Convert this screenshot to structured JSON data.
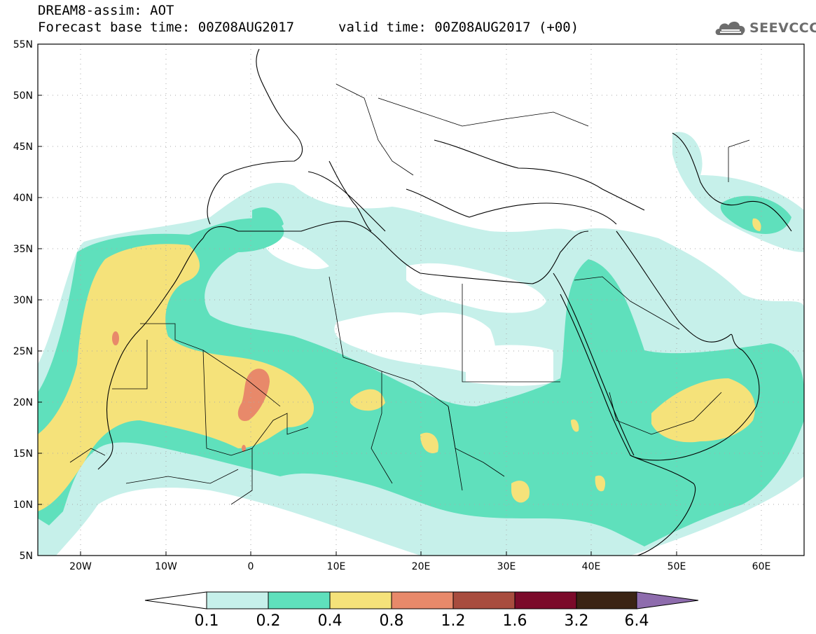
{
  "header": {
    "title": "DREAM8-assim: AOT",
    "base_time": "Forecast base time: 00Z08AUG2017",
    "valid_time": "valid time: 00Z08AUG2017 (+00)"
  },
  "logo": {
    "text": "SEEVCCC",
    "icon": "cloud-icon",
    "color": "#6d6d6d"
  },
  "map": {
    "lon_range": [
      -25,
      65
    ],
    "lat_range": [
      5,
      55
    ],
    "lat_labels": [
      "55N",
      "50N",
      "45N",
      "40N",
      "35N",
      "30N",
      "25N",
      "20N",
      "15N",
      "10N",
      "5N"
    ],
    "lon_labels": [
      "20W",
      "10W",
      "0",
      "10E",
      "20E",
      "30E",
      "40E",
      "50E",
      "60E"
    ]
  },
  "colorbar": {
    "labels": [
      "0.1",
      "0.2",
      "0.4",
      "0.8",
      "1.2",
      "1.6",
      "3.2",
      "6.4"
    ],
    "colors": [
      "#ffffff",
      "#c6f0ea",
      "#5fe0bc",
      "#f5e27a",
      "#e8896a",
      "#a84c3e",
      "#7b0a2a",
      "#3b2414",
      "#8e6cad"
    ]
  }
}
